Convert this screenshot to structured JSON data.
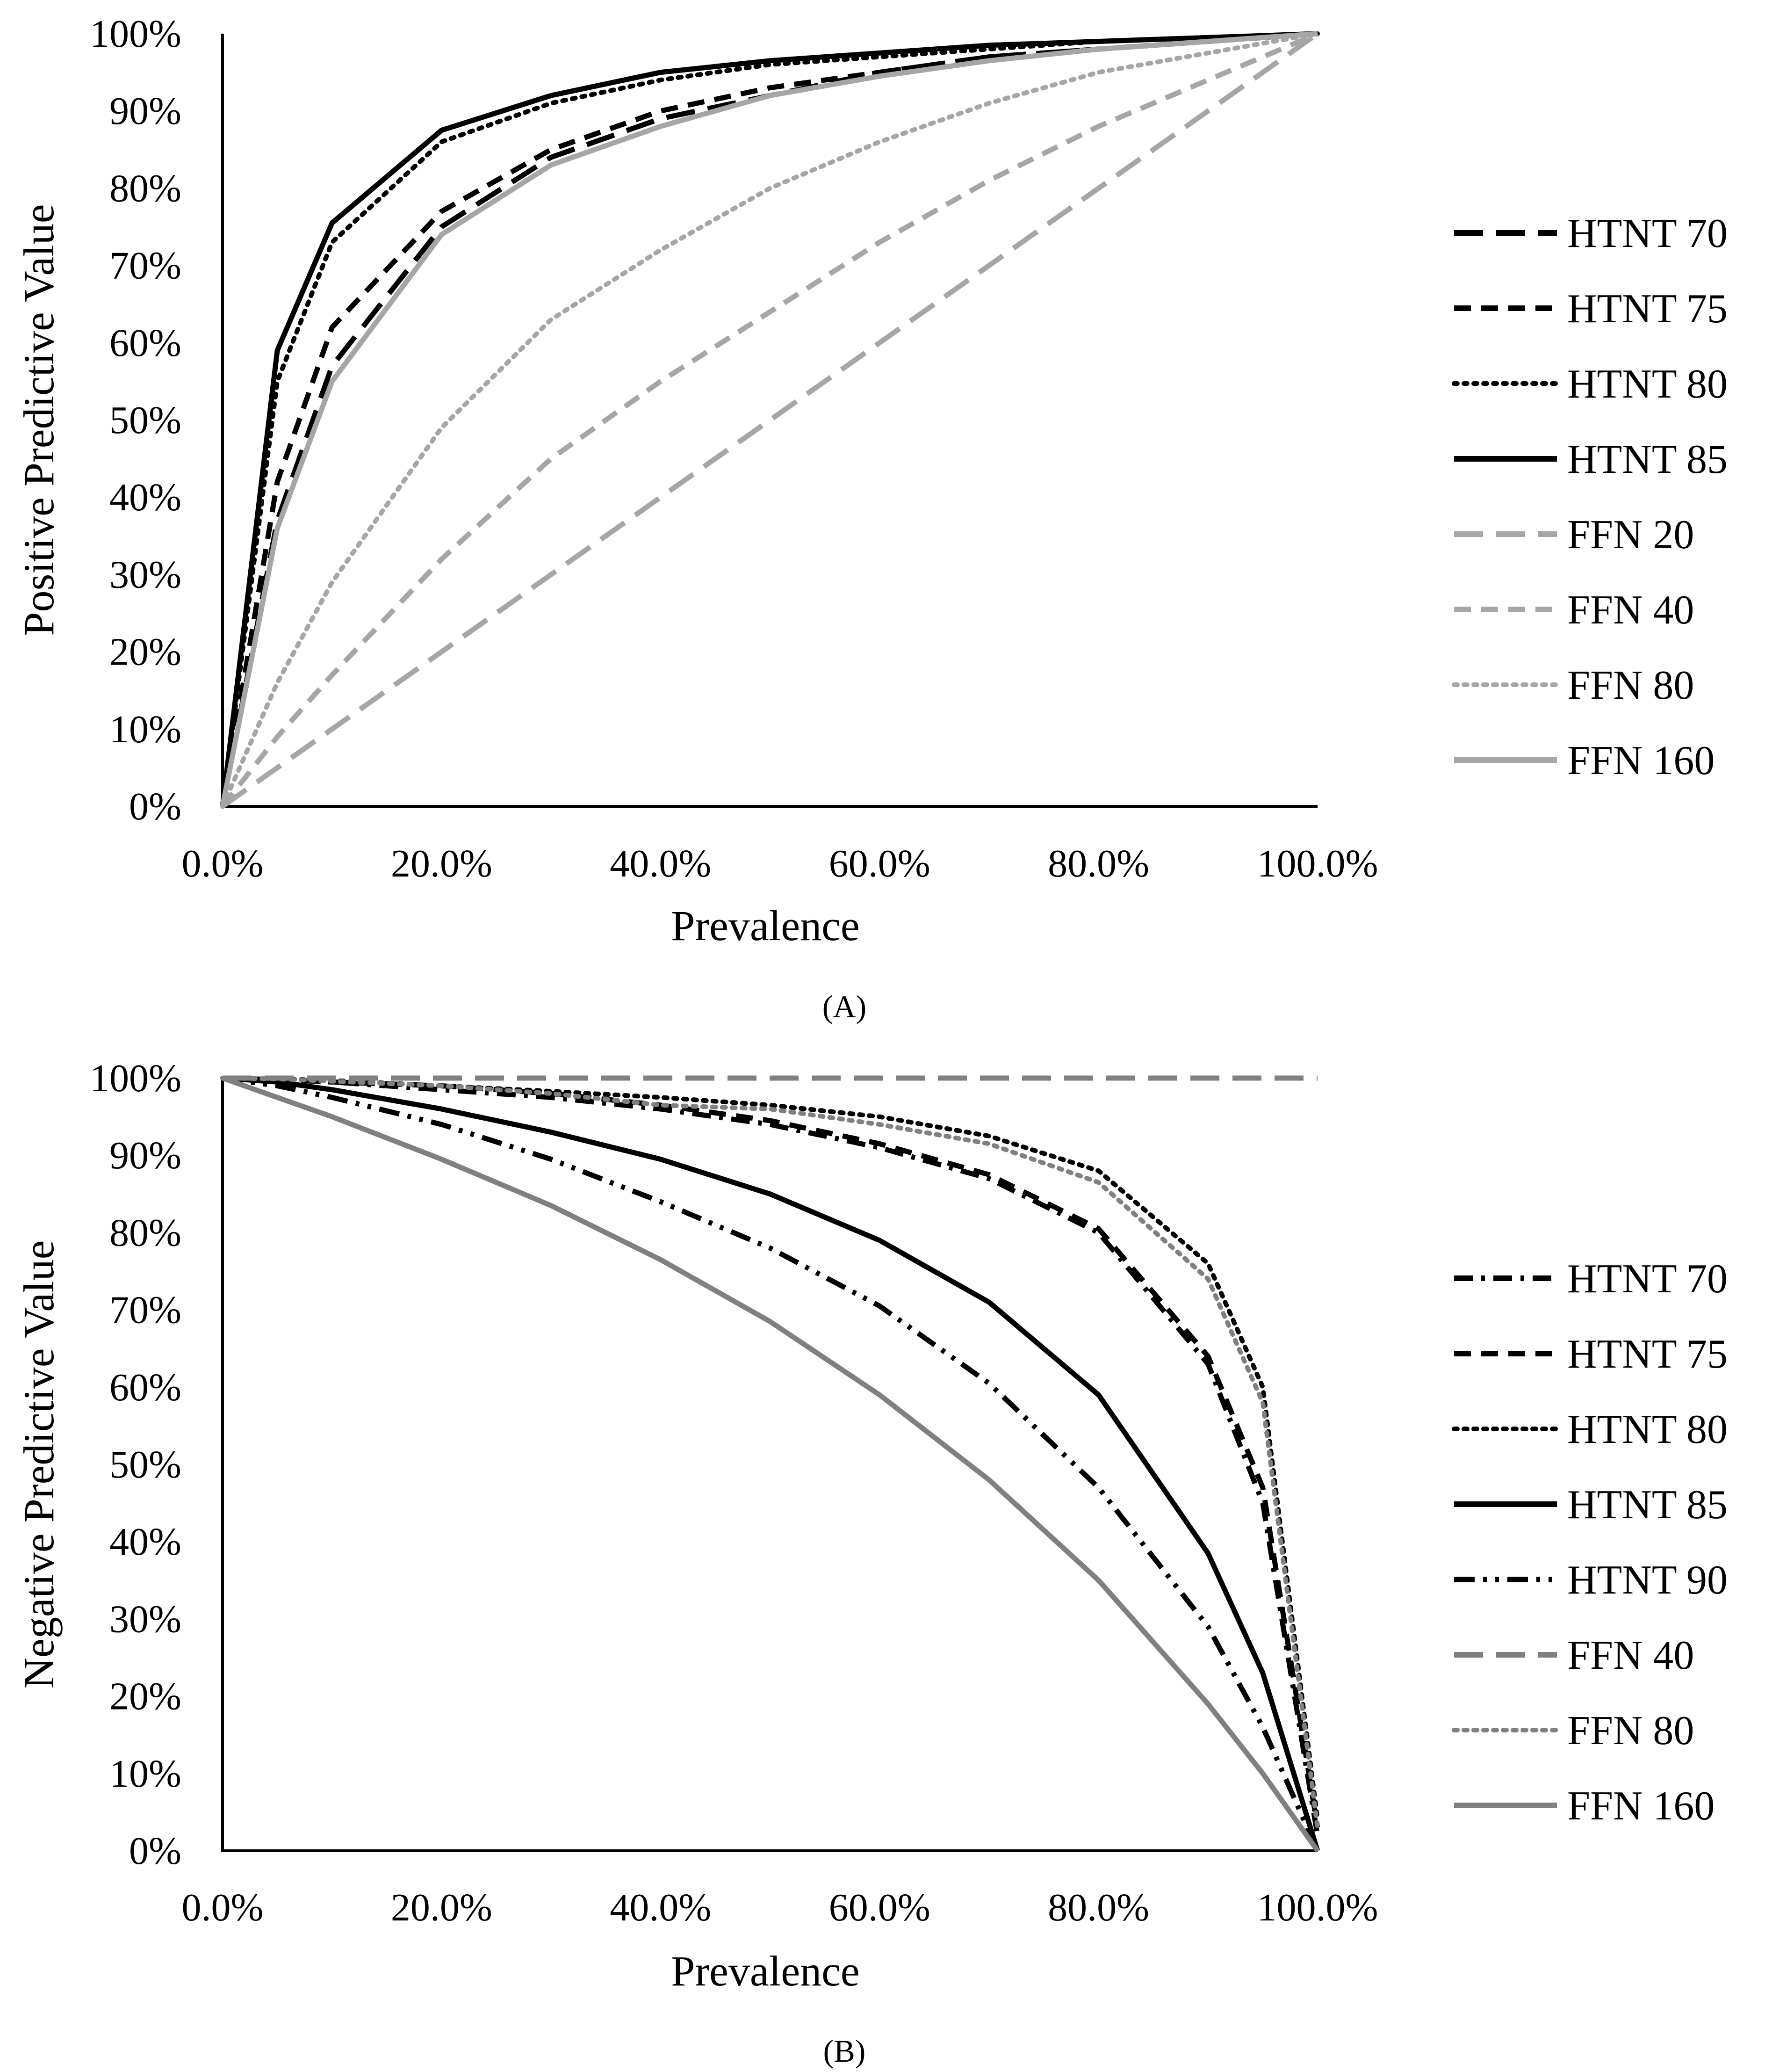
{
  "chart_data": [
    {
      "type": "line",
      "panel_label": "(A)",
      "xlabel": "Prevalence",
      "ylabel": "Positive Predictive Value",
      "xlim": [
        0,
        100
      ],
      "ylim": [
        0,
        100
      ],
      "x_ticks": [
        "0.0%",
        "20.0%",
        "40.0%",
        "60.0%",
        "80.0%",
        "100.0%"
      ],
      "y_ticks": [
        "0%",
        "10%",
        "20%",
        "30%",
        "40%",
        "50%",
        "60%",
        "70%",
        "80%",
        "90%",
        "100%"
      ],
      "x": [
        0,
        5,
        10,
        20,
        30,
        40,
        50,
        60,
        70,
        80,
        90,
        100
      ],
      "legend_position": "right",
      "series": [
        {
          "name": "HTNT 70",
          "color": "#000000",
          "style": "longdash",
          "values": [
            0,
            37,
            57,
            75,
            84,
            89,
            92,
            95,
            97,
            98,
            99,
            100
          ]
        },
        {
          "name": "HTNT 75",
          "color": "#000000",
          "style": "dash",
          "values": [
            0,
            42,
            62,
            77,
            85,
            90,
            93,
            95,
            97,
            98,
            99,
            100
          ]
        },
        {
          "name": "HTNT 80",
          "color": "#000000",
          "style": "dot",
          "values": [
            0,
            55,
            73,
            86,
            91,
            94,
            96,
            97,
            98,
            99,
            99.5,
            100
          ]
        },
        {
          "name": "HTNT 85",
          "color": "#000000",
          "style": "solid",
          "values": [
            0,
            59,
            75.5,
            87.5,
            92,
            95,
            96.5,
            97.5,
            98.5,
            99,
            99.5,
            100
          ]
        },
        {
          "name": "FFN 20",
          "color": "#a6a6a6",
          "style": "longdash",
          "values": [
            0,
            5,
            10,
            20,
            30,
            40,
            50,
            60,
            70,
            80,
            90,
            100
          ]
        },
        {
          "name": "FFN 40",
          "color": "#a6a6a6",
          "style": "dash",
          "values": [
            0,
            9,
            17,
            32,
            45,
            55,
            64,
            73,
            81,
            88,
            94,
            100
          ]
        },
        {
          "name": "FFN 80",
          "color": "#a6a6a6",
          "style": "dot",
          "values": [
            0,
            16,
            29,
            49,
            63,
            72,
            80,
            86,
            91,
            95,
            97.5,
            100
          ]
        },
        {
          "name": "FFN 160",
          "color": "#a6a6a6",
          "style": "solid",
          "values": [
            0,
            36,
            55,
            74,
            83,
            88,
            92,
            94.5,
            96.5,
            98,
            99,
            100
          ]
        }
      ]
    },
    {
      "type": "line",
      "panel_label": "(B)",
      "xlabel": "Prevalence",
      "ylabel": "Negative Predictive Value",
      "xlim": [
        0,
        100
      ],
      "ylim": [
        0,
        100
      ],
      "x_ticks": [
        "0.0%",
        "20.0%",
        "40.0%",
        "60.0%",
        "80.0%",
        "100.0%"
      ],
      "y_ticks": [
        "0%",
        "10%",
        "20%",
        "30%",
        "40%",
        "50%",
        "60%",
        "70%",
        "80%",
        "90%",
        "100%"
      ],
      "x": [
        0,
        5,
        10,
        20,
        30,
        40,
        50,
        60,
        70,
        80,
        90,
        95,
        100
      ],
      "legend_position": "right",
      "series": [
        {
          "name": "HTNT 70",
          "color": "#000000",
          "style": "dashdot",
          "values": [
            100,
            99.8,
            99.5,
            98.5,
            97.5,
            96,
            94,
            91,
            87,
            80,
            63,
            45,
            2
          ]
        },
        {
          "name": "HTNT 75",
          "color": "#000000",
          "style": "dash",
          "values": [
            100,
            99.8,
            99.5,
            99,
            98,
            96.5,
            94.5,
            91.5,
            87.5,
            80.5,
            64,
            47,
            3
          ]
        },
        {
          "name": "HTNT 80",
          "color": "#000000",
          "style": "dot",
          "values": [
            100,
            99.9,
            99.7,
            99,
            98.3,
            97.5,
            96.5,
            95,
            92.5,
            88,
            76,
            60,
            4
          ]
        },
        {
          "name": "HTNT 85",
          "color": "#000000",
          "style": "solid",
          "values": [
            100,
            99.5,
            98.5,
            96,
            93,
            89.5,
            85,
            79,
            71,
            59,
            38.5,
            23,
            0
          ]
        },
        {
          "name": "HTNT 90",
          "color": "#000000",
          "style": "dashdotdot",
          "values": [
            100,
            99,
            97.5,
            94,
            89.5,
            84,
            78,
            70.5,
            60.5,
            47,
            29,
            16,
            0
          ]
        },
        {
          "name": "FFN 40",
          "color": "#808080",
          "style": "longdash",
          "values": [
            100,
            100,
            100,
            100,
            100,
            100,
            100,
            100,
            100,
            100,
            100,
            100,
            100
          ]
        },
        {
          "name": "FFN 80",
          "color": "#808080",
          "style": "dot",
          "values": [
            100,
            99.9,
            99.6,
            99,
            98,
            96.5,
            96,
            94,
            91.5,
            86.5,
            74,
            58,
            3
          ]
        },
        {
          "name": "FFN 160",
          "color": "#808080",
          "style": "solid",
          "values": [
            100,
            97.5,
            95,
            89.5,
            83.5,
            76.5,
            68.5,
            59,
            48,
            35,
            19,
            10,
            0
          ]
        }
      ]
    }
  ]
}
